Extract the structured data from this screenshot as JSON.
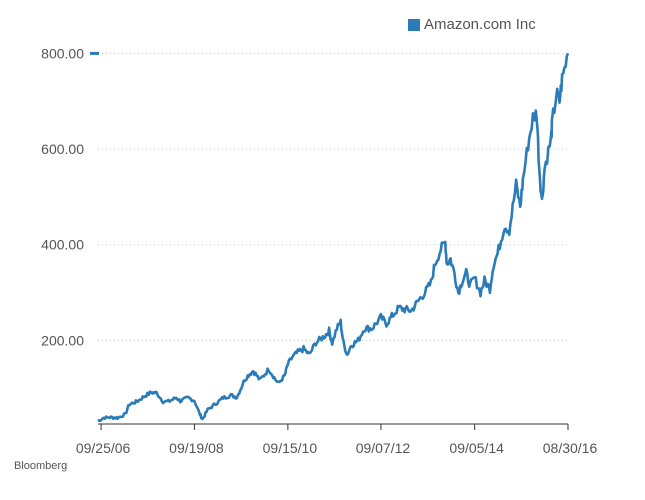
{
  "legend": {
    "label": "Amazon.com Inc"
  },
  "source": "Bloomberg",
  "colors": {
    "series": "#2b7bb9",
    "grid": "#c8c8c8",
    "axis": "#333333",
    "text": "#555555"
  },
  "chart_data": {
    "type": "line",
    "title": "",
    "xlabel": "",
    "ylabel": "",
    "ylim": [
      25,
      805
    ],
    "xlim": [
      "2006-09-01",
      "2016-08-30"
    ],
    "y_ticks": [
      200,
      400,
      600,
      800
    ],
    "y_tick_labels": [
      "200.00",
      "400.00",
      "600.00",
      "800.00"
    ],
    "x_ticks": [
      "2006-09-25",
      "2008-09-19",
      "2010-09-15",
      "2012-09-07",
      "2014-09-05",
      "2016-08-30"
    ],
    "x_tick_labels": [
      "09/25/06",
      "09/19/08",
      "09/15/10",
      "09/07/12",
      "09/05/14",
      "08/30/16"
    ],
    "grid": "horizontal-dotted",
    "legend_position": "top-right",
    "series": [
      {
        "name": "Amazon.com Inc",
        "points": [
          [
            "2006-09-01",
            31
          ],
          [
            "2006-10-15",
            38
          ],
          [
            "2006-12-01",
            39
          ],
          [
            "2007-02-01",
            38
          ],
          [
            "2007-04-01",
            45
          ],
          [
            "2007-05-01",
            66
          ],
          [
            "2007-07-01",
            72
          ],
          [
            "2007-09-01",
            84
          ],
          [
            "2007-10-20",
            91
          ],
          [
            "2007-12-01",
            90
          ],
          [
            "2008-01-20",
            72
          ],
          [
            "2008-03-01",
            72
          ],
          [
            "2008-05-01",
            80
          ],
          [
            "2008-06-01",
            73
          ],
          [
            "2008-08-01",
            80
          ],
          [
            "2008-09-19",
            74
          ],
          [
            "2008-11-01",
            45
          ],
          [
            "2008-11-20",
            35
          ],
          [
            "2009-01-01",
            55
          ],
          [
            "2009-03-01",
            67
          ],
          [
            "2009-05-01",
            80
          ],
          [
            "2009-07-01",
            85
          ],
          [
            "2009-08-15",
            81
          ],
          [
            "2009-10-15",
            118
          ],
          [
            "2009-11-15",
            128
          ],
          [
            "2009-12-20",
            136
          ],
          [
            "2010-02-10",
            117
          ],
          [
            "2010-04-20",
            140
          ],
          [
            "2010-06-01",
            122
          ],
          [
            "2010-07-01",
            110
          ],
          [
            "2010-08-20",
            125
          ],
          [
            "2010-09-15",
            150
          ],
          [
            "2010-10-20",
            165
          ],
          [
            "2010-12-01",
            175
          ],
          [
            "2011-01-15",
            182
          ],
          [
            "2011-03-01",
            170
          ],
          [
            "2011-04-20",
            195
          ],
          [
            "2011-07-01",
            210
          ],
          [
            "2011-08-01",
            220
          ],
          [
            "2011-08-25",
            195
          ],
          [
            "2011-10-01",
            225
          ],
          [
            "2011-10-30",
            238
          ],
          [
            "2011-11-20",
            195
          ],
          [
            "2011-12-20",
            170
          ],
          [
            "2012-01-20",
            190
          ],
          [
            "2012-03-15",
            200
          ],
          [
            "2012-05-01",
            225
          ],
          [
            "2012-07-01",
            225
          ],
          [
            "2012-09-07",
            248
          ],
          [
            "2012-10-20",
            235
          ],
          [
            "2012-12-01",
            250
          ],
          [
            "2013-01-25",
            268
          ],
          [
            "2013-03-01",
            265
          ],
          [
            "2013-05-01",
            262
          ],
          [
            "2013-07-01",
            285
          ],
          [
            "2013-08-15",
            300
          ],
          [
            "2013-10-01",
            320
          ],
          [
            "2013-11-01",
            360
          ],
          [
            "2013-12-15",
            390
          ],
          [
            "2014-01-20",
            405
          ],
          [
            "2014-02-01",
            360
          ],
          [
            "2014-03-01",
            370
          ],
          [
            "2014-04-01",
            340
          ],
          [
            "2014-05-01",
            300
          ],
          [
            "2014-06-01",
            325
          ],
          [
            "2014-07-01",
            340
          ],
          [
            "2014-08-01",
            315
          ],
          [
            "2014-09-05",
            330
          ],
          [
            "2014-10-20",
            300
          ],
          [
            "2014-11-20",
            325
          ],
          [
            "2015-01-01",
            308
          ],
          [
            "2015-01-30",
            360
          ],
          [
            "2015-03-01",
            380
          ],
          [
            "2015-04-25",
            440
          ],
          [
            "2015-06-01",
            430
          ],
          [
            "2015-07-24",
            525
          ],
          [
            "2015-08-25",
            480
          ],
          [
            "2015-09-15",
            535
          ],
          [
            "2015-10-25",
            610
          ],
          [
            "2015-12-01",
            665
          ],
          [
            "2015-12-31",
            675
          ],
          [
            "2016-01-20",
            560
          ],
          [
            "2016-02-10",
            490
          ],
          [
            "2016-03-01",
            560
          ],
          [
            "2016-04-20",
            620
          ],
          [
            "2016-04-29",
            655
          ],
          [
            "2016-06-01",
            715
          ],
          [
            "2016-06-25",
            700
          ],
          [
            "2016-07-15",
            745
          ],
          [
            "2016-08-30",
            800
          ]
        ]
      }
    ]
  }
}
